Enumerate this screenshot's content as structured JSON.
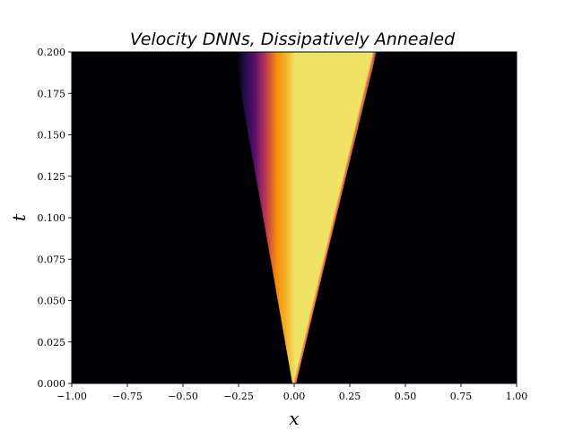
{
  "chart_data": {
    "type": "heatmap",
    "title": "Velocity DNNs, Dissipatively Annealed",
    "xlabel": "x",
    "ylabel": "t",
    "xlim": [
      -1.0,
      1.0
    ],
    "ylim": [
      0.0,
      0.2
    ],
    "x_ticks": [
      "−1.00",
      "−0.75",
      "−0.50",
      "−0.25",
      "0.00",
      "0.25",
      "0.50",
      "0.75",
      "1.00"
    ],
    "x_tick_values": [
      -1.0,
      -0.75,
      -0.5,
      -0.25,
      0.0,
      0.25,
      0.5,
      0.75,
      1.0
    ],
    "y_ticks": [
      "0.000",
      "0.025",
      "0.050",
      "0.075",
      "0.100",
      "0.125",
      "0.150",
      "0.175",
      "0.200"
    ],
    "y_tick_values": [
      0.0,
      0.025,
      0.05,
      0.075,
      0.1,
      0.125,
      0.15,
      0.175,
      0.2
    ],
    "colormap": "inferno",
    "fan_origin": [
      0.0,
      0.0
    ],
    "fan_left_edge_at_top": [
      -0.27,
      0.2
    ],
    "shock_right_edge_at_top": [
      0.36,
      0.2
    ],
    "colors": {
      "background": "#000004",
      "plateau": "#f0e265",
      "orange": "#f98e09",
      "red": "#bc3754",
      "purple": "#57106e"
    }
  }
}
